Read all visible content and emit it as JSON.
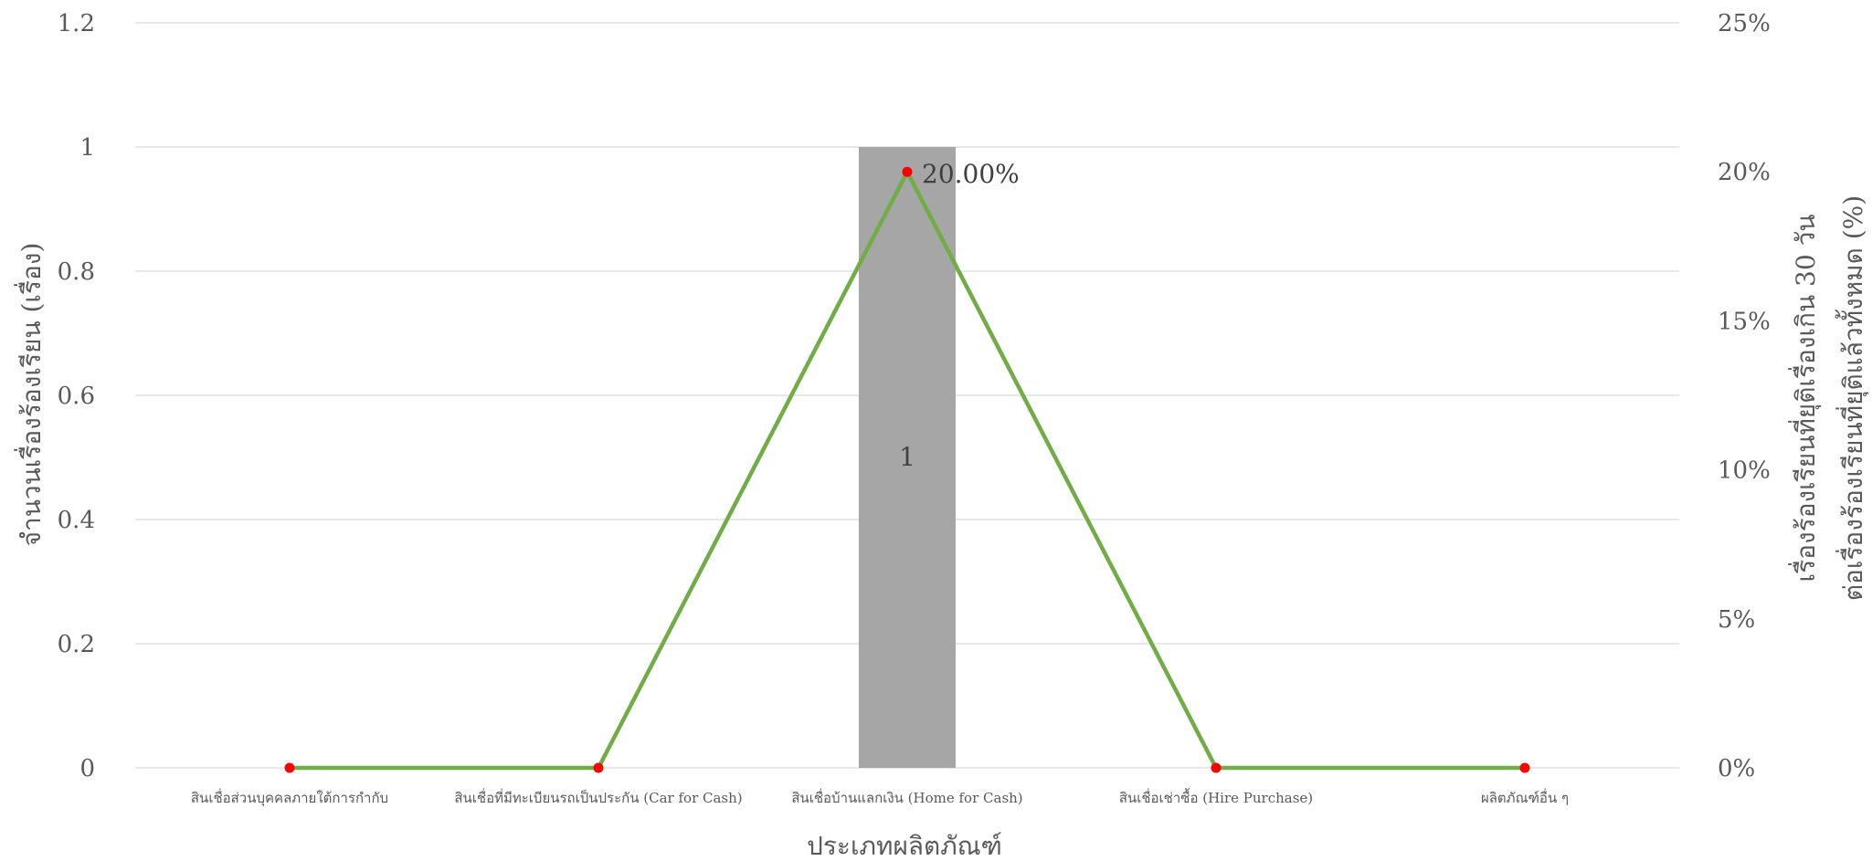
{
  "chart_data": {
    "type": "bar",
    "categories": [
      "สินเชื่อส่วนบุคคลภายใต้การกำกับ",
      "สินเชื่อที่มีทะเบียนรถเป็นประกัน (Car for Cash)",
      "สินเชื่อบ้านแลกเงิน (Home for Cash)",
      "สินเชื่อเช่าซื้อ (Hire Purchase)",
      "ผลิตภัณฑ์อื่น ๆ"
    ],
    "series": [
      {
        "kind": "bar",
        "axis": "left",
        "values": [
          0,
          0,
          1,
          0,
          0
        ],
        "value_labels": [
          "",
          "",
          "1",
          "",
          ""
        ],
        "color": "#a6a6a6"
      },
      {
        "kind": "line",
        "axis": "right",
        "values": [
          0,
          0,
          20,
          0,
          0
        ],
        "value_labels": [
          "",
          "",
          "20.00%",
          "",
          ""
        ],
        "color": "#70ad47",
        "marker_color": "#ff0000"
      }
    ],
    "xlabel": "ประเภทผลิตภัณฑ์",
    "ylabel": "จำนวนเรื่องร้องเรียน (เรื่อง)",
    "y2label_line1": "เรื่องร้องเรียนที่ยุติเรื่องเกิน 30 วัน",
    "y2label_line2": "ต่อเรื่องร้องเรียนที่ยุติแล้วทั้งหมด (%)",
    "ylim": [
      0,
      1.2
    ],
    "y2lim": [
      0,
      25
    ],
    "yticks": [
      "0",
      "0.2",
      "0.4",
      "0.6",
      "0.8",
      "1",
      "1.2"
    ],
    "y2ticks": [
      "0%",
      "5%",
      "10%",
      "15%",
      "20%",
      "25%"
    ],
    "grid": true,
    "legend": "none"
  }
}
